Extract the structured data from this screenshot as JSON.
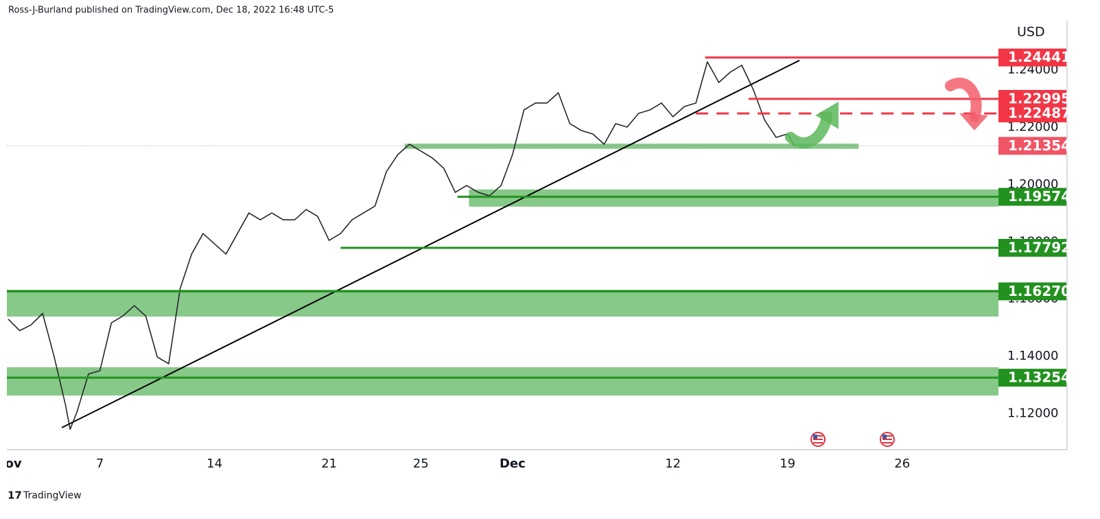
{
  "chart_data": {
    "type": "line",
    "header": "Ross-J-Burland published on TradingView.com, Dec 18, 2022 16:48 UTC-5",
    "currency": "USD",
    "brand": "TradingView",
    "x": [
      0,
      0.5,
      1,
      1.5,
      2,
      2.5,
      2.7,
      3,
      3.5,
      4,
      4.5,
      5,
      5.5,
      6,
      6.5,
      7,
      7.5,
      8,
      8.5,
      9,
      9.5,
      10,
      10.5,
      11,
      11.5,
      12,
      12.5,
      13,
      13.5,
      14,
      14.5,
      15,
      15.5,
      16,
      16.5,
      17,
      17.5,
      18,
      18.5,
      19,
      19.5,
      20,
      20.5,
      21,
      21.5,
      22,
      22.5,
      23,
      23.5,
      24,
      24.5,
      25,
      25.5,
      26,
      26.5,
      27,
      27.5,
      28,
      28.5,
      29,
      29.5,
      30,
      30.5,
      31,
      31.5,
      32,
      32.5,
      33,
      33.5,
      34,
      34.3
    ],
    "series": [
      {
        "color": "#26262b",
        "values": [
          1.153,
          1.149,
          1.151,
          1.155,
          1.14,
          1.123,
          1.1145,
          1.1206,
          1.1338,
          1.135,
          1.1517,
          1.1541,
          1.1577,
          1.1541,
          1.1398,
          1.1374,
          1.1637,
          1.1757,
          1.1829,
          1.1793,
          1.1757,
          1.1829,
          1.1901,
          1.1877,
          1.1901,
          1.1877,
          1.1877,
          1.1913,
          1.1889,
          1.1805,
          1.1829,
          1.1877,
          1.1901,
          1.1925,
          1.2045,
          1.2105,
          1.2141,
          1.2117,
          1.2093,
          1.2057,
          1.1973,
          1.1997,
          1.1973,
          1.1961,
          1.1997,
          1.2105,
          1.2261,
          1.2285,
          1.2285,
          1.2321,
          1.2213,
          1.2189,
          1.2177,
          1.2141,
          1.2213,
          1.2201,
          1.2249,
          1.2261,
          1.2285,
          1.2237,
          1.2273,
          1.2285,
          1.2429,
          1.2357,
          1.2393,
          1.2417,
          1.2333,
          1.2225,
          1.2165,
          1.2177,
          1.21354
        ]
      }
    ],
    "xlim": [
      -0.06,
      43.2
    ],
    "xticks": [
      {
        "value": 0,
        "label": "Nov"
      },
      {
        "value": 4,
        "label": "7"
      },
      {
        "value": 9,
        "label": "14"
      },
      {
        "value": 14,
        "label": "21"
      },
      {
        "value": 18,
        "label": "25"
      },
      {
        "value": 22,
        "label": "Dec"
      },
      {
        "value": 29,
        "label": "12"
      },
      {
        "value": 34,
        "label": "19"
      },
      {
        "value": 39,
        "label": "26"
      }
    ],
    "ylim": [
      1.1074,
      1.2573
    ],
    "yticks": [
      {
        "value": 1.12,
        "label": "1.12000"
      },
      {
        "value": 1.14,
        "label": "1.14000"
      },
      {
        "value": 1.16,
        "label": "1.16000"
      },
      {
        "value": 1.18,
        "label": "1.18000"
      },
      {
        "value": 1.2,
        "label": "1.20000"
      },
      {
        "value": 1.22,
        "label": "1.22000"
      },
      {
        "value": 1.24,
        "label": "1.24000"
      }
    ],
    "zones": [
      {
        "from": 17.3,
        "to": 37.1,
        "lo": 1.2125,
        "hi": 1.2143
      },
      {
        "from": 20.1,
        "lo": 1.1923,
        "hi": 1.1983
      },
      {
        "lo": 1.1539,
        "hi": 1.1633
      },
      {
        "lo": 1.1263,
        "hi": 1.1362
      }
    ],
    "trendline": {
      "x": [
        2.34,
        34.52
      ],
      "y": [
        1.1151,
        1.2434
      ]
    },
    "last_price": 1.21354,
    "levels": [
      {
        "value": 1.24441,
        "from": 30.4,
        "color": "#f23645",
        "dashed": false
      },
      {
        "value": 1.22995,
        "from": 32.3,
        "color": "#f23645",
        "dashed": false
      },
      {
        "value": 1.22487,
        "from": 30.0,
        "color": "#f23645",
        "dashed": true
      },
      {
        "value": 1.19574,
        "from": 19.6,
        "color": "#22911f",
        "dashed": false
      },
      {
        "value": 1.17792,
        "from": 14.5,
        "color": "#22911f",
        "dashed": false
      },
      {
        "value": 1.1627,
        "label": "1.16270",
        "color": "#22911f",
        "dashed": false
      },
      {
        "value": 1.13254,
        "color": "#22911f",
        "dashed": false
      }
    ]
  }
}
